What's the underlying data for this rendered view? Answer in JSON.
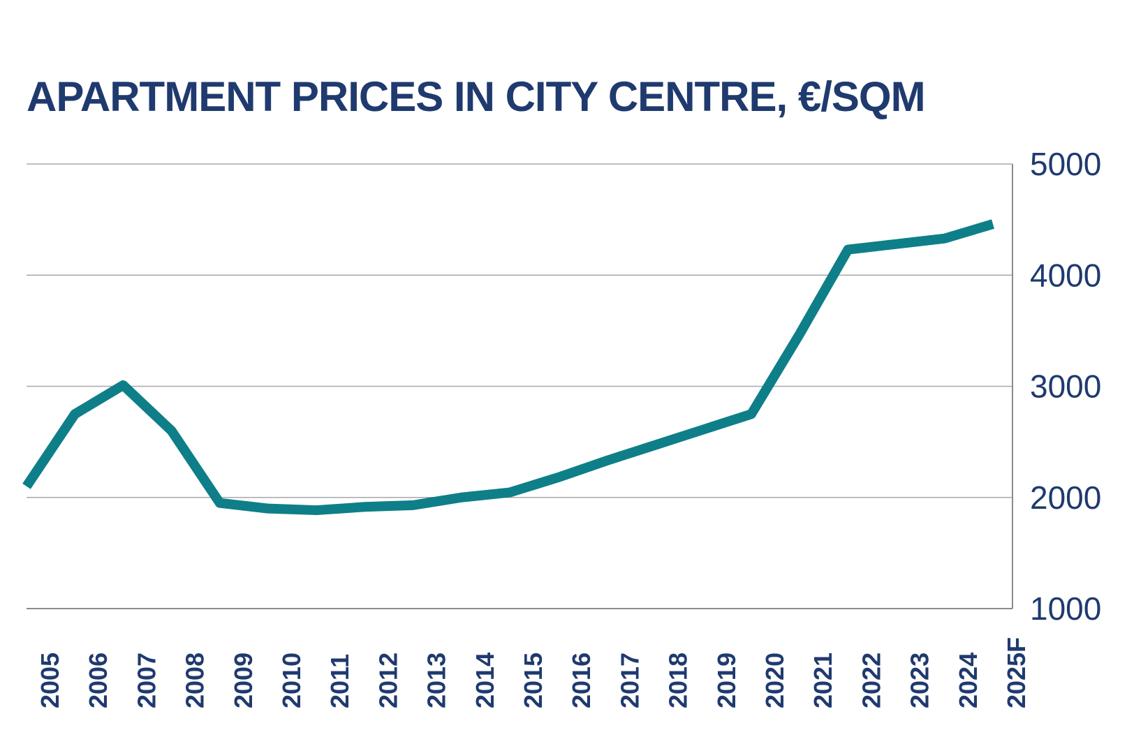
{
  "chart_data": {
    "type": "line",
    "title": "APARTMENT PRICES IN CITY CENTRE, €/SQM",
    "categories": [
      "2005",
      "2006",
      "2007",
      "2008",
      "2009",
      "2010",
      "2011",
      "2012",
      "2013",
      "2014",
      "2015",
      "2016",
      "2017",
      "2018",
      "2019",
      "2020",
      "2021",
      "2022",
      "2023",
      "2024",
      "2025F"
    ],
    "series": [
      {
        "values": [
          2100,
          2750,
          3010,
          2600,
          1950,
          1900,
          1885,
          1915,
          1930,
          2000,
          2045,
          2180,
          2330,
          2470,
          2610,
          2750,
          3470,
          4230,
          4280,
          4330,
          4460
        ],
        "color": "#0e7f88"
      }
    ],
    "yticks": [
      "1000",
      "2000",
      "3000",
      "4000",
      "5000"
    ],
    "ylim": [
      1000,
      5000
    ],
    "y_axis_side": "right",
    "grid": true,
    "legend": "none"
  }
}
